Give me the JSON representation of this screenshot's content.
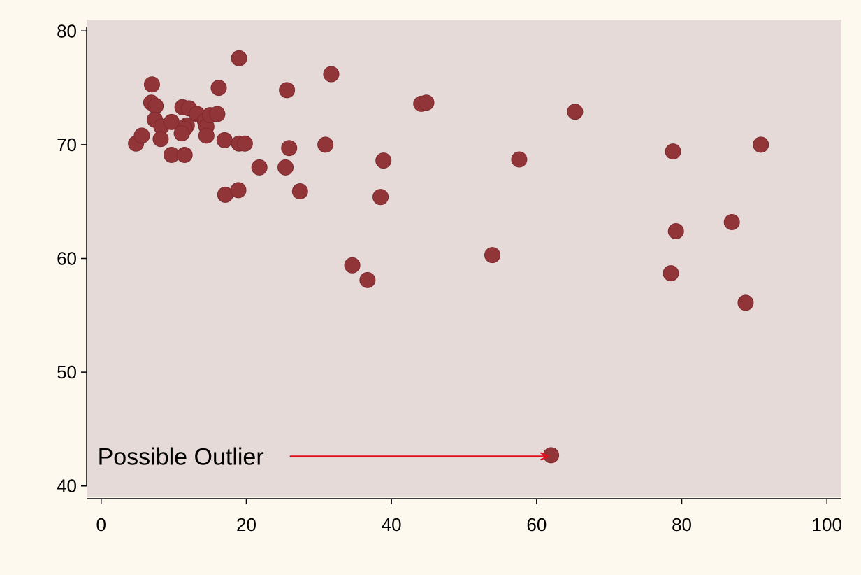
{
  "colors": {
    "page_background": "#fdf9ee",
    "plot_background": "#e5dad8",
    "marker": "#923539",
    "marker_edge": "#7d2a2e",
    "axis": "#000000",
    "annotation_arrow": "#e0101e"
  },
  "chart_data": {
    "type": "scatter",
    "title": "",
    "xlabel": "",
    "ylabel": "",
    "xlim": [
      -2,
      102
    ],
    "ylim": [
      39,
      81
    ],
    "xticks": [
      0,
      20,
      40,
      60,
      80,
      100
    ],
    "yticks": [
      40,
      50,
      60,
      70,
      80
    ],
    "xtick_labels": [
      "0",
      "20",
      "40",
      "60",
      "80",
      "100"
    ],
    "ytick_labels": [
      "40",
      "50",
      "60",
      "70",
      "80"
    ],
    "grid": false,
    "legend": "none",
    "points": [
      {
        "x": 4.8,
        "y": 70.1
      },
      {
        "x": 5.6,
        "y": 70.8
      },
      {
        "x": 7.0,
        "y": 75.3
      },
      {
        "x": 6.9,
        "y": 73.7
      },
      {
        "x": 7.5,
        "y": 73.4
      },
      {
        "x": 7.4,
        "y": 72.2
      },
      {
        "x": 8.3,
        "y": 71.6
      },
      {
        "x": 8.2,
        "y": 70.5
      },
      {
        "x": 9.7,
        "y": 72.0
      },
      {
        "x": 9.7,
        "y": 69.1
      },
      {
        "x": 11.2,
        "y": 73.3
      },
      {
        "x": 12.1,
        "y": 73.2
      },
      {
        "x": 11.8,
        "y": 71.7
      },
      {
        "x": 11.5,
        "y": 71.4
      },
      {
        "x": 11.1,
        "y": 71.0
      },
      {
        "x": 11.5,
        "y": 69.1
      },
      {
        "x": 13.2,
        "y": 72.7
      },
      {
        "x": 14.3,
        "y": 72.1
      },
      {
        "x": 14.5,
        "y": 71.6
      },
      {
        "x": 15.0,
        "y": 72.6
      },
      {
        "x": 16.0,
        "y": 72.7
      },
      {
        "x": 14.5,
        "y": 70.8
      },
      {
        "x": 16.2,
        "y": 75.0
      },
      {
        "x": 17.0,
        "y": 70.4
      },
      {
        "x": 19.0,
        "y": 70.1
      },
      {
        "x": 19.8,
        "y": 70.1
      },
      {
        "x": 19.0,
        "y": 77.6
      },
      {
        "x": 17.1,
        "y": 65.6
      },
      {
        "x": 18.9,
        "y": 66.0
      },
      {
        "x": 21.8,
        "y": 68.0
      },
      {
        "x": 25.6,
        "y": 74.8
      },
      {
        "x": 25.9,
        "y": 69.7
      },
      {
        "x": 25.4,
        "y": 68.0
      },
      {
        "x": 27.4,
        "y": 65.9
      },
      {
        "x": 31.7,
        "y": 76.2
      },
      {
        "x": 30.9,
        "y": 70.0
      },
      {
        "x": 34.6,
        "y": 59.4
      },
      {
        "x": 36.7,
        "y": 58.1
      },
      {
        "x": 38.9,
        "y": 68.6
      },
      {
        "x": 38.5,
        "y": 65.4
      },
      {
        "x": 44.1,
        "y": 73.6
      },
      {
        "x": 44.8,
        "y": 73.7
      },
      {
        "x": 53.9,
        "y": 60.3
      },
      {
        "x": 57.6,
        "y": 68.7
      },
      {
        "x": 62.0,
        "y": 42.7
      },
      {
        "x": 65.3,
        "y": 72.9
      },
      {
        "x": 78.8,
        "y": 69.4
      },
      {
        "x": 79.2,
        "y": 62.4
      },
      {
        "x": 78.5,
        "y": 58.7
      },
      {
        "x": 86.9,
        "y": 63.2
      },
      {
        "x": 88.8,
        "y": 56.1
      },
      {
        "x": 90.9,
        "y": 70.0
      }
    ],
    "annotations": [
      {
        "text": "Possible Outlier",
        "x_text": -0.5,
        "y_text": 42.6,
        "x_arrow_start": 26,
        "x_arrow_end": 61.6,
        "y_arrow": 42.6
      }
    ]
  }
}
